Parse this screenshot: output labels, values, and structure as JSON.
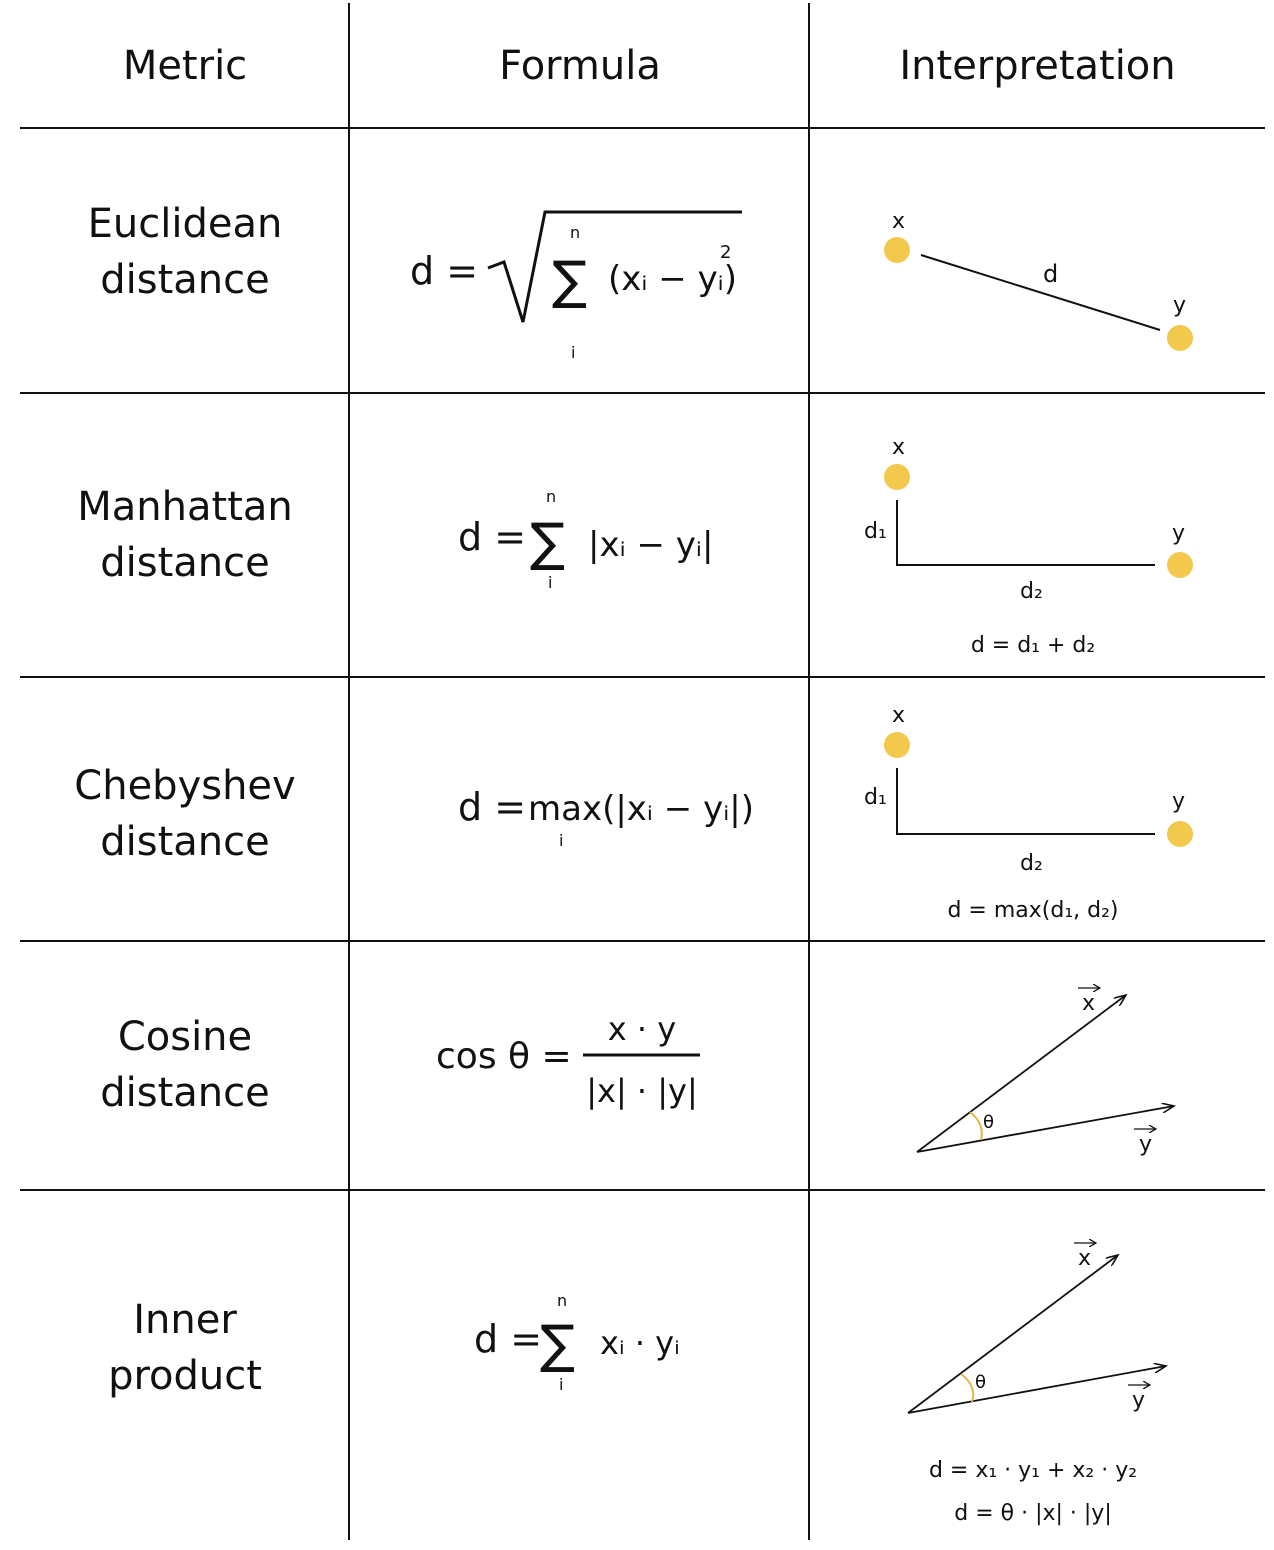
{
  "headers": {
    "metric": "Metric",
    "formula": "Formula",
    "interpretation": "Interpretation"
  },
  "rows": [
    {
      "metric": [
        "Euclidean",
        "distance"
      ],
      "formula": {
        "lhs": "d =",
        "sum_top": "n",
        "sum_bottom": "i",
        "sigma": "∑",
        "body": "(xᵢ − yᵢ)",
        "power": "2"
      },
      "interp": {
        "x": "x",
        "y": "y",
        "d": "d"
      }
    },
    {
      "metric": [
        "Manhattan",
        "distance"
      ],
      "formula": {
        "lhs": "d =",
        "sum_top": "n",
        "sum_bottom": "i",
        "sigma": "∑",
        "body": "|xᵢ − yᵢ|"
      },
      "interp": {
        "x": "x",
        "y": "y",
        "d1": "d₁",
        "d2": "d₂",
        "eq": "d = d₁ + d₂"
      }
    },
    {
      "metric": [
        "Chebyshev",
        "distance"
      ],
      "formula": {
        "lhs": "d =",
        "body": "max(|xᵢ − yᵢ|)",
        "sub": "i"
      },
      "interp": {
        "x": "x",
        "y": "y",
        "d1": "d₁",
        "d2": "d₂",
        "eq": "d = max(d₁, d₂)"
      }
    },
    {
      "metric": [
        "Cosine",
        "distance"
      ],
      "formula": {
        "lhs": "cos θ =",
        "num": "x · y",
        "den": "|x| · |y|"
      },
      "interp": {
        "x": "x",
        "y": "y",
        "theta": "θ"
      }
    },
    {
      "metric": [
        "Inner",
        "product"
      ],
      "formula": {
        "lhs": "d =",
        "sum_top": "n",
        "sum_bottom": "i",
        "sigma": "∑",
        "body": "xᵢ · yᵢ"
      },
      "interp": {
        "x": "x",
        "y": "y",
        "theta": "θ",
        "eq1": "d = x₁ · y₁ + x₂ · y₂",
        "eq2": "d = θ · |x| · |y|"
      }
    }
  ],
  "colors": {
    "point": "#F2C94C",
    "line": "#111111",
    "arc": "#E0B84A"
  }
}
